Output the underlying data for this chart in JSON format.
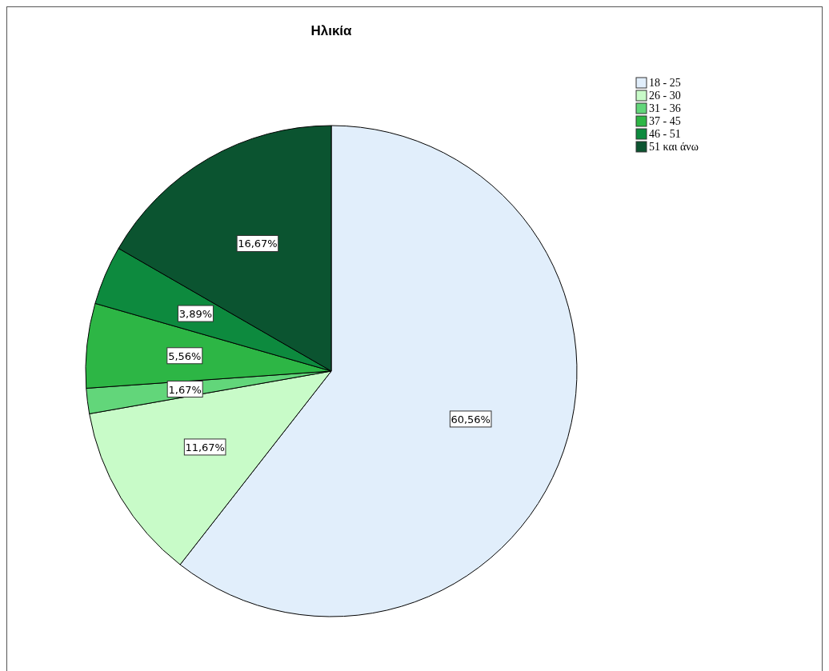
{
  "chart_data": {
    "type": "pie",
    "title": "Ηλικία",
    "categories": [
      "18 - 25",
      "26 - 30",
      "31 -  36",
      "37 -  45",
      "46 - 51",
      "51 και άνω"
    ],
    "values": [
      60.56,
      11.67,
      1.67,
      5.56,
      3.89,
      16.67
    ],
    "colors": [
      "#e1eefb",
      "#c8fbc8",
      "#62d67a",
      "#2db645",
      "#0d8a3e",
      "#0b5430"
    ],
    "value_labels": [
      "60,56%",
      "11,67%",
      "1,67%",
      "5,56%",
      "3,89%",
      "16,67%"
    ],
    "legend": "top right"
  }
}
